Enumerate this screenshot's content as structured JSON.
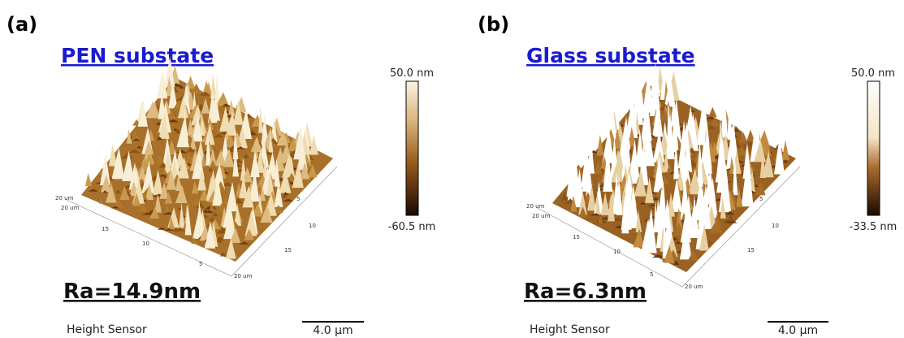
{
  "panels": [
    {
      "label": "(a)",
      "title": "PEN substate",
      "colorbar": {
        "max": "50.0 nm",
        "min": "-60.5 nm"
      },
      "roughness": "Ra=14.9nm",
      "channel": "Height Sensor",
      "scale_bar": "4.0 μm",
      "axis_labels": [
        "20 um",
        "20 um",
        "15",
        "10",
        "5",
        "5",
        "10",
        "15",
        "20 um"
      ]
    },
    {
      "label": "(b)",
      "title": "Glass substate",
      "colorbar": {
        "max": "50.0 nm",
        "min": "-33.5 nm"
      },
      "roughness": "Ra=6.3nm",
      "channel": "Height Sensor",
      "scale_bar": "4.0 μm",
      "axis_labels": [
        "20 um",
        "20 um",
        "15",
        "10",
        "5",
        "5",
        "10",
        "15",
        "20 um"
      ]
    }
  ]
}
